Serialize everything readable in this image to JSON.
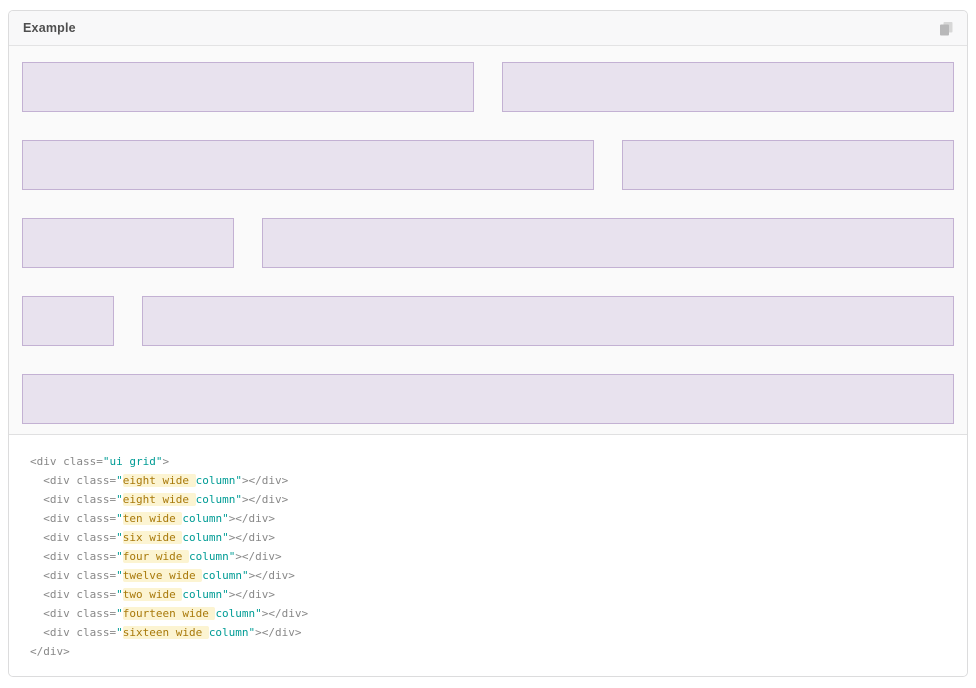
{
  "panel": {
    "header": {
      "title": "Example",
      "copy_icon": "copy-icon"
    }
  },
  "grid_columns": [
    {
      "name": "eight-wide",
      "label": "eight wide column",
      "wide": 8
    },
    {
      "name": "eight-wide",
      "label": "eight wide column",
      "wide": 8
    },
    {
      "name": "ten-wide",
      "label": "ten wide column",
      "wide": 10
    },
    {
      "name": "six-wide",
      "label": "six wide column",
      "wide": 6
    },
    {
      "name": "four-wide",
      "label": "four wide column",
      "wide": 4
    },
    {
      "name": "twelve-wide",
      "label": "twelve wide column",
      "wide": 12
    },
    {
      "name": "two-wide",
      "label": "two wide column",
      "wide": 2
    },
    {
      "name": "fourteen-wide",
      "label": "fourteen wide column",
      "wide": 14
    },
    {
      "name": "sixteen-wide",
      "label": "sixteen wide column",
      "wide": 16
    }
  ],
  "code": {
    "lines": [
      [
        {
          "t": "plain",
          "v": "<div class="
        },
        {
          "t": "string",
          "v": "\"ui grid\""
        },
        {
          "t": "plain",
          "v": ">"
        }
      ],
      [
        {
          "t": "plain",
          "v": "  <div class="
        },
        {
          "t": "string",
          "v": "\""
        },
        {
          "t": "hl",
          "v": "eight wide "
        },
        {
          "t": "string",
          "v": "column\""
        },
        {
          "t": "plain",
          "v": "></div>"
        }
      ],
      [
        {
          "t": "plain",
          "v": "  <div class="
        },
        {
          "t": "string",
          "v": "\""
        },
        {
          "t": "hl",
          "v": "eight wide "
        },
        {
          "t": "string",
          "v": "column\""
        },
        {
          "t": "plain",
          "v": "></div>"
        }
      ],
      [
        {
          "t": "plain",
          "v": "  <div class="
        },
        {
          "t": "string",
          "v": "\""
        },
        {
          "t": "hl",
          "v": "ten wide "
        },
        {
          "t": "string",
          "v": "column\""
        },
        {
          "t": "plain",
          "v": "></div>"
        }
      ],
      [
        {
          "t": "plain",
          "v": "  <div class="
        },
        {
          "t": "string",
          "v": "\""
        },
        {
          "t": "hl",
          "v": "six wide "
        },
        {
          "t": "string",
          "v": "column\""
        },
        {
          "t": "plain",
          "v": "></div>"
        }
      ],
      [
        {
          "t": "plain",
          "v": "  <div class="
        },
        {
          "t": "string",
          "v": "\""
        },
        {
          "t": "hl",
          "v": "four wide "
        },
        {
          "t": "string",
          "v": "column\""
        },
        {
          "t": "plain",
          "v": "></div>"
        }
      ],
      [
        {
          "t": "plain",
          "v": "  <div class="
        },
        {
          "t": "string",
          "v": "\""
        },
        {
          "t": "hl",
          "v": "twelve wide "
        },
        {
          "t": "string",
          "v": "column\""
        },
        {
          "t": "plain",
          "v": "></div>"
        }
      ],
      [
        {
          "t": "plain",
          "v": "  <div class="
        },
        {
          "t": "string",
          "v": "\""
        },
        {
          "t": "hl",
          "v": "two wide "
        },
        {
          "t": "string",
          "v": "column\""
        },
        {
          "t": "plain",
          "v": "></div>"
        }
      ],
      [
        {
          "t": "plain",
          "v": "  <div class="
        },
        {
          "t": "string",
          "v": "\""
        },
        {
          "t": "hl",
          "v": "fourteen wide "
        },
        {
          "t": "string",
          "v": "column\""
        },
        {
          "t": "plain",
          "v": "></div>"
        }
      ],
      [
        {
          "t": "plain",
          "v": "  <div class="
        },
        {
          "t": "string",
          "v": "\""
        },
        {
          "t": "hl",
          "v": "sixteen wide "
        },
        {
          "t": "string",
          "v": "column\""
        },
        {
          "t": "plain",
          "v": "></div>"
        }
      ],
      [
        {
          "t": "plain",
          "v": "</div>"
        }
      ]
    ]
  },
  "colors": {
    "column_fill": "#e8e2ee",
    "column_border": "#c3b1d3",
    "code_plain": "#888888",
    "code_string": "#009c95",
    "code_highlight_text": "#a8790a",
    "code_highlight_bg": "#fcf4d2",
    "header_bg": "#f8f8f9",
    "panel_border": "#dcdcdd"
  }
}
